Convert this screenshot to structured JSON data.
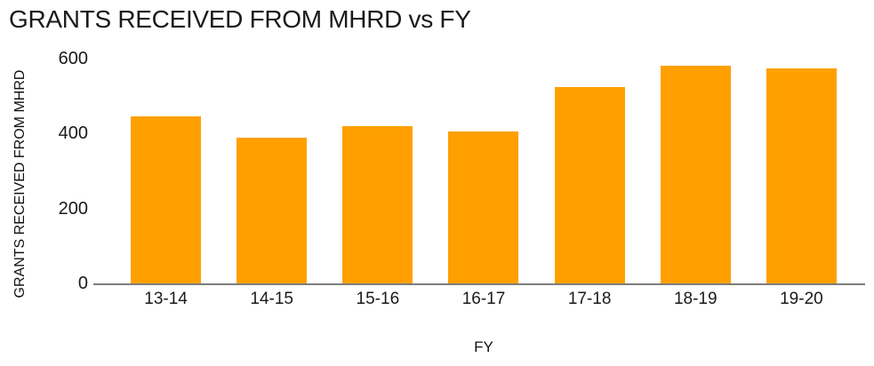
{
  "title": "GRANTS RECEIVED FROM MHRD vs FY",
  "chart_data": {
    "type": "bar",
    "title": "GRANTS RECEIVED FROM MHRD vs FY",
    "categories": [
      "13-14",
      "14-15",
      "15-16",
      "16-17",
      "17-18",
      "18-19",
      "19-20"
    ],
    "values": [
      445,
      390,
      420,
      405,
      525,
      580,
      575
    ],
    "xlabel": "FY",
    "ylabel": "GRANTS RECEIVED FROM MHRD",
    "yticks": [
      0,
      200,
      400,
      600
    ],
    "ylim": [
      0,
      600
    ],
    "grid": false,
    "legend": false,
    "colors": {
      "bar": "#FFA000",
      "axis_line": "#7D7D7D",
      "text": "#1A1A1A"
    }
  }
}
